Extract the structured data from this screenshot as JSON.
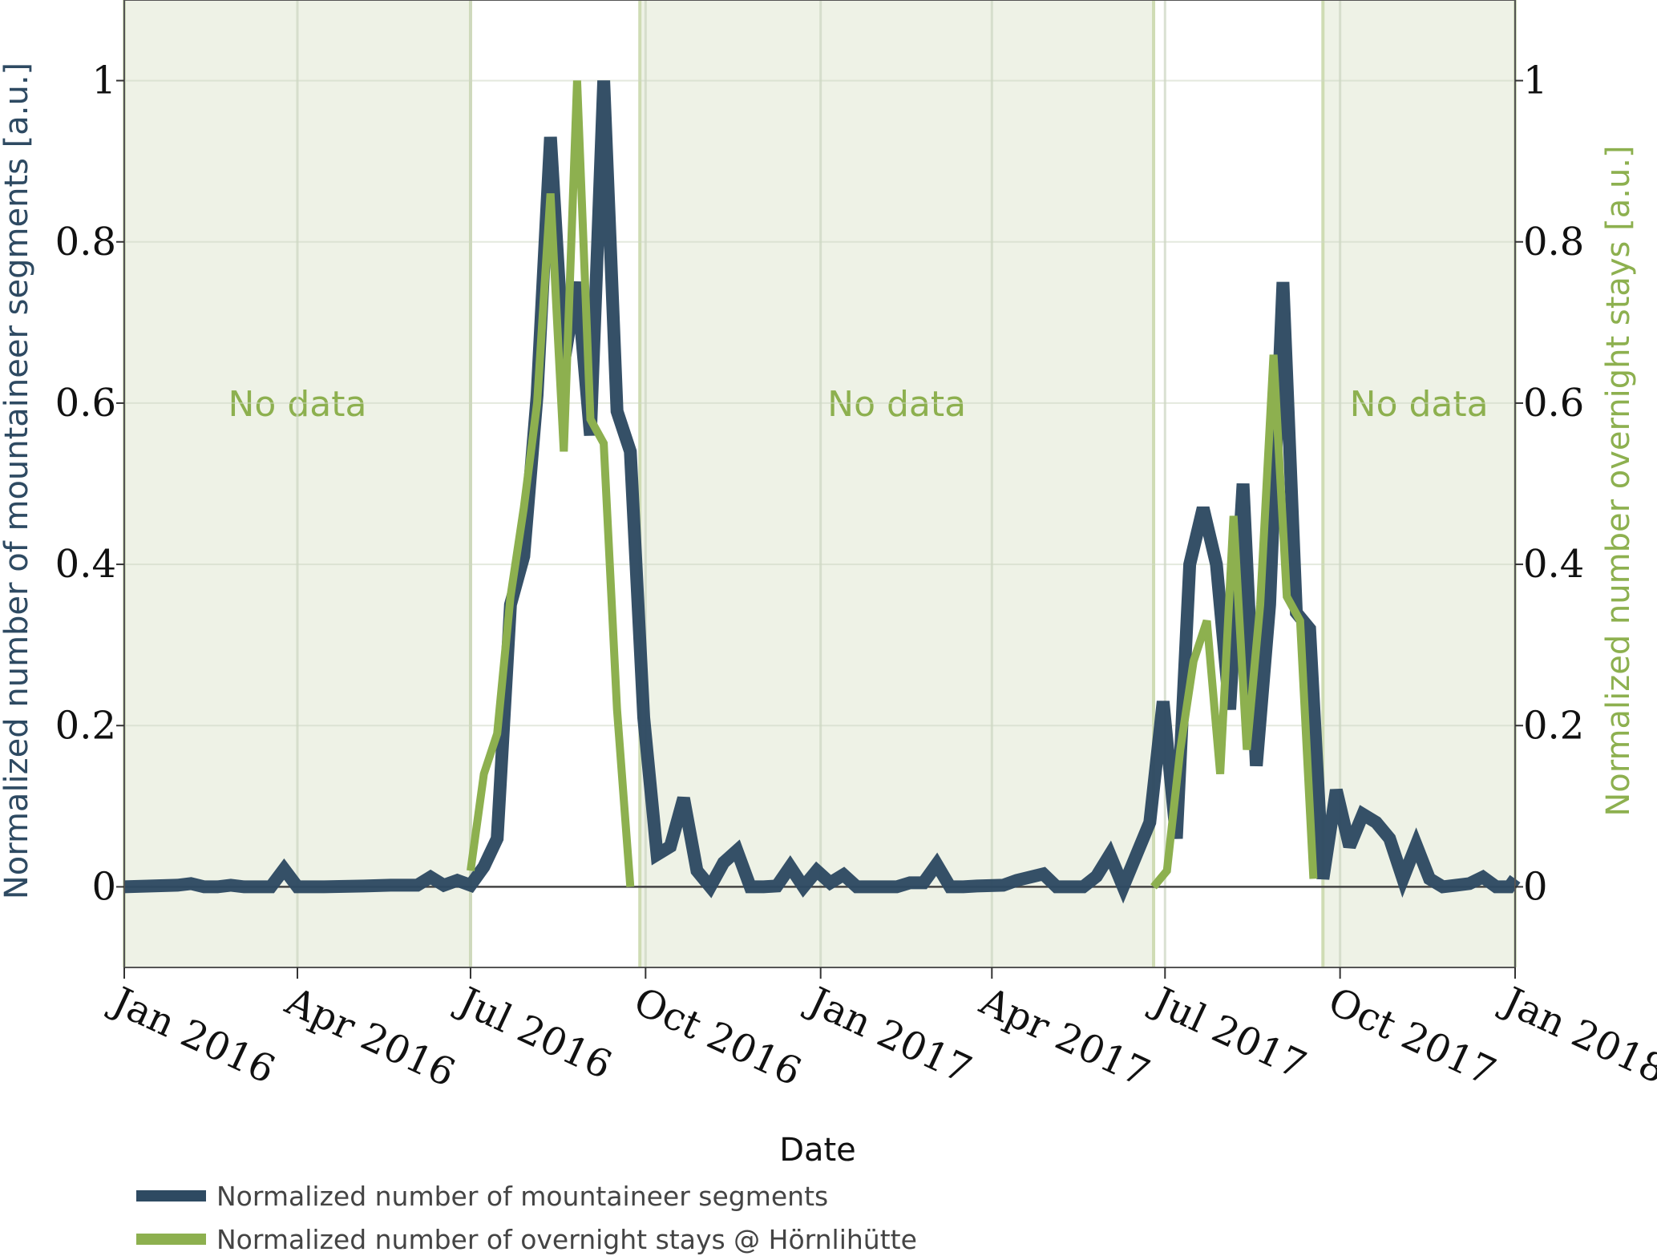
{
  "chart_data": {
    "type": "line",
    "xlabel": "Date",
    "ylabel_left": "Normalized number of mountaineer segments [a.u.]",
    "ylabel_right": "Normalized number overnight stays [a.u.]",
    "ylim": [
      -0.1,
      1.1
    ],
    "xlim": [
      "2016-01-01",
      "2018-01-01"
    ],
    "y_ticks": [
      0,
      0.2,
      0.4,
      0.6,
      0.8,
      1
    ],
    "y_tick_labels": [
      "0",
      "0.2",
      "0.4",
      "0.6",
      "0.8",
      "1"
    ],
    "x_ticks": [
      "2016-01-01",
      "2016-04-01",
      "2016-07-01",
      "2016-10-01",
      "2017-01-01",
      "2017-04-01",
      "2017-07-01",
      "2017-10-01",
      "2018-01-01"
    ],
    "x_tick_labels": [
      "Jan 2016",
      "Apr 2016",
      "Jul 2016",
      "Oct 2016",
      "Jan 2017",
      "Apr 2017",
      "Jul 2017",
      "Oct 2017",
      "Jan 2018"
    ],
    "grid": true,
    "legend_position": "bottom",
    "shaded_regions": [
      {
        "start": "2016-01-01",
        "end": "2016-07-01",
        "label": "No data"
      },
      {
        "start": "2016-09-28",
        "end": "2017-06-25",
        "label": "No data"
      },
      {
        "start": "2017-09-22",
        "end": "2018-01-01",
        "label": "No data"
      }
    ],
    "series": [
      {
        "name": "Normalized number of mountaineer segments",
        "color": "#2e4a62",
        "axis": "left",
        "points": [
          [
            "2016-01-01",
            0.0
          ],
          [
            "2016-01-15",
            0.001
          ],
          [
            "2016-01-29",
            0.002
          ],
          [
            "2016-02-05",
            0.004
          ],
          [
            "2016-02-12",
            0.0
          ],
          [
            "2016-02-19",
            0.0
          ],
          [
            "2016-02-26",
            0.002
          ],
          [
            "2016-03-04",
            0.0
          ],
          [
            "2016-03-18",
            0.0
          ],
          [
            "2016-03-25",
            0.022
          ],
          [
            "2016-04-01",
            0.0
          ],
          [
            "2016-04-15",
            0.0
          ],
          [
            "2016-05-06",
            0.001
          ],
          [
            "2016-05-20",
            0.002
          ],
          [
            "2016-06-03",
            0.002
          ],
          [
            "2016-06-10",
            0.012
          ],
          [
            "2016-06-17",
            0.002
          ],
          [
            "2016-06-24",
            0.008
          ],
          [
            "2016-07-01",
            0.002
          ],
          [
            "2016-07-08",
            0.025
          ],
          [
            "2016-07-15",
            0.06
          ],
          [
            "2016-07-22",
            0.35
          ],
          [
            "2016-07-29",
            0.41
          ],
          [
            "2016-08-05",
            0.61
          ],
          [
            "2016-08-12",
            0.93
          ],
          [
            "2016-08-19",
            0.65
          ],
          [
            "2016-08-26",
            0.75
          ],
          [
            "2016-09-02",
            0.56
          ],
          [
            "2016-09-09",
            1.0
          ],
          [
            "2016-09-16",
            0.59
          ],
          [
            "2016-09-23",
            0.54
          ],
          [
            "2016-09-30",
            0.21
          ],
          [
            "2016-10-07",
            0.04
          ],
          [
            "2016-10-14",
            0.05
          ],
          [
            "2016-10-21",
            0.11
          ],
          [
            "2016-10-28",
            0.02
          ],
          [
            "2016-11-04",
            0.0
          ],
          [
            "2016-11-11",
            0.03
          ],
          [
            "2016-11-18",
            0.045
          ],
          [
            "2016-11-25",
            0.0
          ],
          [
            "2016-12-02",
            0.0
          ],
          [
            "2016-12-09",
            0.001
          ],
          [
            "2016-12-16",
            0.025
          ],
          [
            "2016-12-23",
            0.0
          ],
          [
            "2016-12-30",
            0.02
          ],
          [
            "2017-01-06",
            0.005
          ],
          [
            "2017-01-13",
            0.015
          ],
          [
            "2017-01-20",
            0.0
          ],
          [
            "2017-01-27",
            0.0
          ],
          [
            "2017-02-03",
            0.0
          ],
          [
            "2017-02-10",
            0.0
          ],
          [
            "2017-02-17",
            0.005
          ],
          [
            "2017-02-24",
            0.005
          ],
          [
            "2017-03-03",
            0.028
          ],
          [
            "2017-03-10",
            0.0
          ],
          [
            "2017-03-17",
            0.0
          ],
          [
            "2017-03-24",
            0.001
          ],
          [
            "2017-04-07",
            0.002
          ],
          [
            "2017-04-14",
            0.008
          ],
          [
            "2017-04-28",
            0.016
          ],
          [
            "2017-05-05",
            0.0
          ],
          [
            "2017-05-12",
            0.0
          ],
          [
            "2017-05-19",
            0.0
          ],
          [
            "2017-05-26",
            0.013
          ],
          [
            "2017-06-02",
            0.04
          ],
          [
            "2017-06-09",
            0.0
          ],
          [
            "2017-06-16",
            0.04
          ],
          [
            "2017-06-23",
            0.08
          ],
          [
            "2017-06-30",
            0.23
          ],
          [
            "2017-07-07",
            0.06
          ],
          [
            "2017-07-14",
            0.4
          ],
          [
            "2017-07-21",
            0.47
          ],
          [
            "2017-07-28",
            0.4
          ],
          [
            "2017-08-04",
            0.22
          ],
          [
            "2017-08-11",
            0.5
          ],
          [
            "2017-08-18",
            0.15
          ],
          [
            "2017-08-25",
            0.35
          ],
          [
            "2017-09-01",
            0.75
          ],
          [
            "2017-09-08",
            0.34
          ],
          [
            "2017-09-15",
            0.32
          ],
          [
            "2017-09-22",
            0.01
          ],
          [
            "2017-09-29",
            0.12
          ],
          [
            "2017-10-06",
            0.05
          ],
          [
            "2017-10-13",
            0.09
          ],
          [
            "2017-10-20",
            0.08
          ],
          [
            "2017-10-27",
            0.06
          ],
          [
            "2017-11-03",
            0.01
          ],
          [
            "2017-11-10",
            0.052
          ],
          [
            "2017-11-17",
            0.01
          ],
          [
            "2017-11-24",
            0.0
          ],
          [
            "2017-12-01",
            0.002
          ],
          [
            "2017-12-08",
            0.004
          ],
          [
            "2017-12-15",
            0.012
          ],
          [
            "2017-12-22",
            0.0
          ],
          [
            "2017-12-29",
            0.0
          ],
          [
            "2018-01-01",
            0.01
          ]
        ]
      },
      {
        "name": "Normalized number of overnight stays @ Hörnlihütte",
        "color": "#8db04f",
        "axis": "right",
        "points": [
          [
            "2016-07-01",
            0.02
          ],
          [
            "2016-07-08",
            0.14
          ],
          [
            "2016-07-15",
            0.19
          ],
          [
            "2016-07-22",
            0.36
          ],
          [
            "2016-07-29",
            0.47
          ],
          [
            "2016-08-05",
            0.6
          ],
          [
            "2016-08-12",
            0.86
          ],
          [
            "2016-08-19",
            0.54
          ],
          [
            "2016-08-26",
            1.0
          ],
          [
            "2016-09-02",
            0.58
          ],
          [
            "2016-09-09",
            0.55
          ],
          [
            "2016-09-16",
            0.22
          ],
          [
            "2016-09-23",
            0.0
          ],
          [
            "2017-06-25",
            0.0
          ],
          [
            "2017-07-02",
            0.02
          ],
          [
            "2017-07-09",
            0.17
          ],
          [
            "2017-07-16",
            0.28
          ],
          [
            "2017-07-23",
            0.33
          ],
          [
            "2017-07-30",
            0.14
          ],
          [
            "2017-08-06",
            0.46
          ],
          [
            "2017-08-13",
            0.17
          ],
          [
            "2017-08-20",
            0.35
          ],
          [
            "2017-08-27",
            0.66
          ],
          [
            "2017-09-03",
            0.36
          ],
          [
            "2017-09-10",
            0.33
          ],
          [
            "2017-09-17",
            0.01
          ]
        ]
      }
    ]
  }
}
